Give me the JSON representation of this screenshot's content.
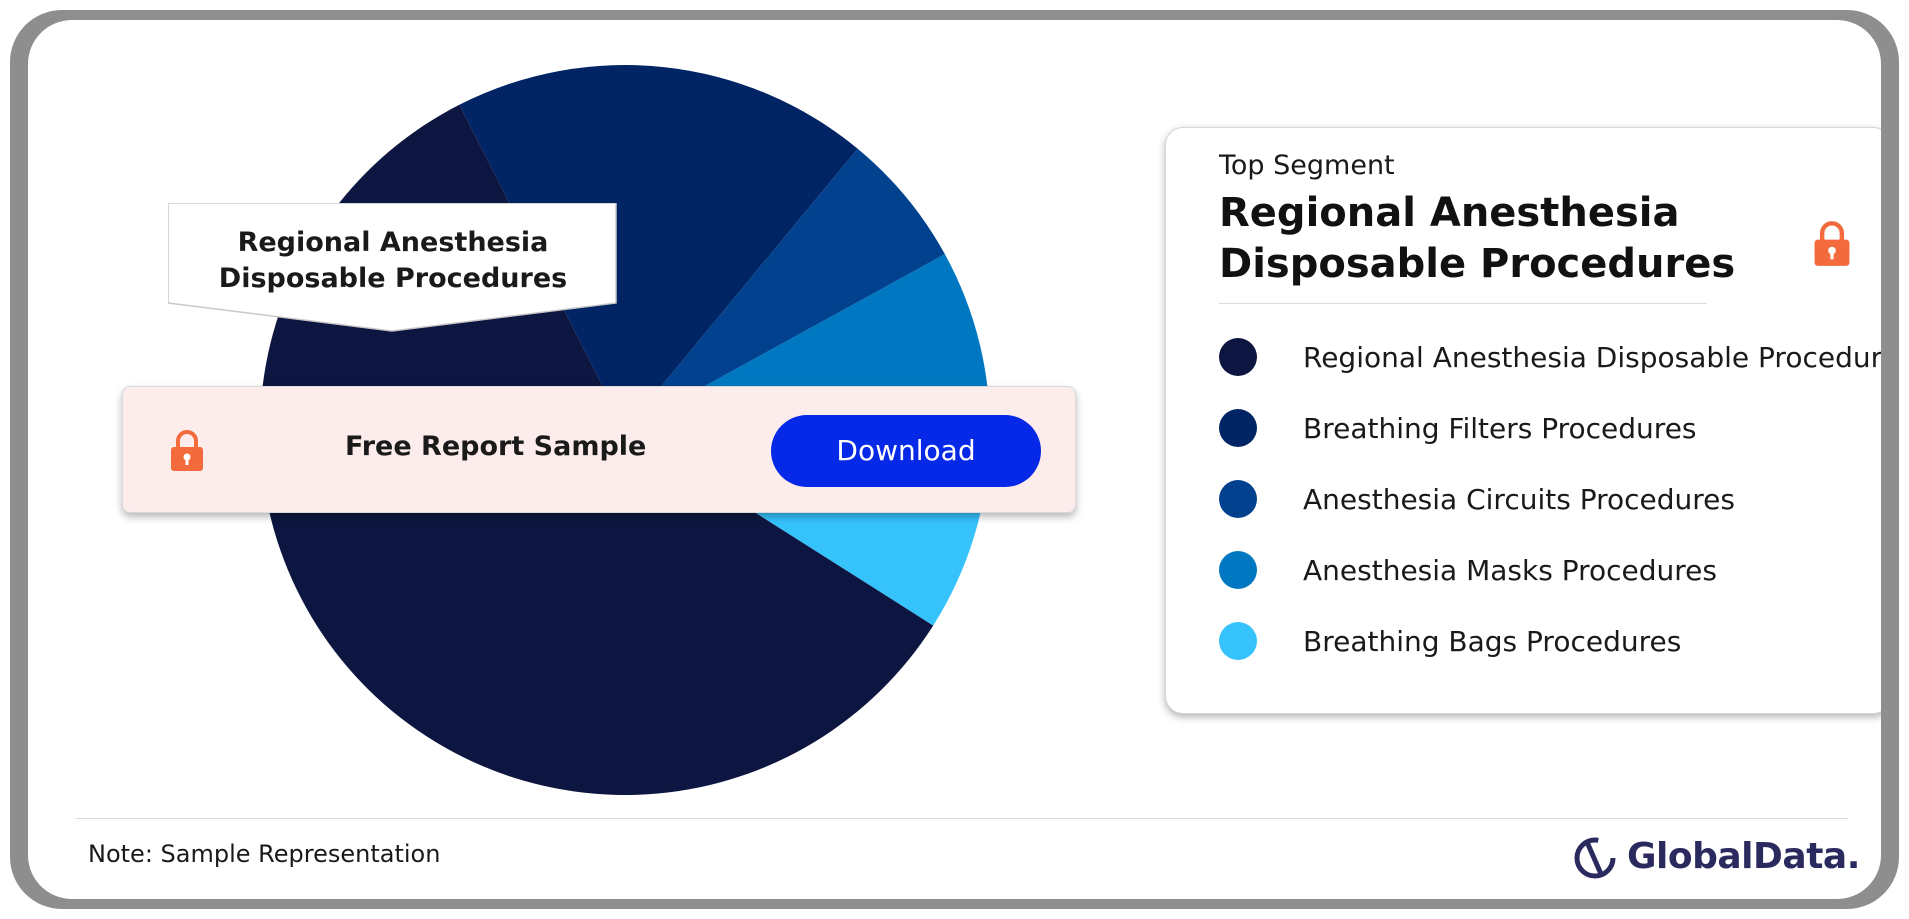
{
  "chart_data": {
    "type": "pie",
    "title": "",
    "slices": [
      {
        "label": "Regional Anesthesia Disposable Procedures",
        "value": 58.5,
        "color": "#0d1640"
      },
      {
        "label": "Breathing Filters Procedures",
        "value": 18.5,
        "color": "#012465"
      },
      {
        "label": "Anesthesia Circuits Procedures",
        "value": 6.0,
        "color": "#01418e"
      },
      {
        "label": "Anesthesia Masks Procedures",
        "value": 8.5,
        "color": "#0078c1"
      },
      {
        "label": "Breathing Bags Procedures",
        "value": 8.5,
        "color": "#36c3fc"
      }
    ],
    "legend_position": "right"
  },
  "callout": {
    "line1": "Regional Anesthesia",
    "line2": "Disposable Procedures"
  },
  "banner": {
    "text": "Free Report Sample",
    "button_label": "Download",
    "lock_icon": "lock-icon",
    "accent": "#f36a3d",
    "button_color": "#0529e6"
  },
  "top_segment": {
    "label": "Top Segment",
    "title_line1": "Regional Anesthesia",
    "title_line2": "Disposable Procedures"
  },
  "footer": {
    "note": "Note: Sample Representation",
    "brand": "GlobalData."
  }
}
